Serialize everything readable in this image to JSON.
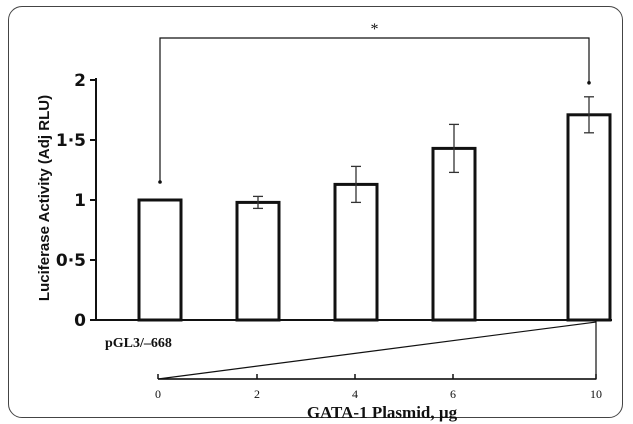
{
  "chart_data": {
    "type": "bar",
    "categories": [
      "0",
      "2",
      "4",
      "6",
      "10"
    ],
    "values": [
      1.0,
      0.98,
      1.13,
      1.43,
      1.71
    ],
    "error": [
      0,
      0.05,
      0.15,
      0.2,
      0.15
    ],
    "ylabel": "Luciferase Activity (Adj RLU)",
    "ylim": [
      0,
      2
    ],
    "yticks": [
      "0",
      "0·5",
      "1",
      "1·5",
      "2"
    ],
    "xlabel": "GATA-1 Plasmid, µg",
    "xticks": [
      "0",
      "2",
      "4",
      "6",
      "10"
    ],
    "construct_label": "pGL3/–668",
    "significance": "*",
    "grid": false
  }
}
